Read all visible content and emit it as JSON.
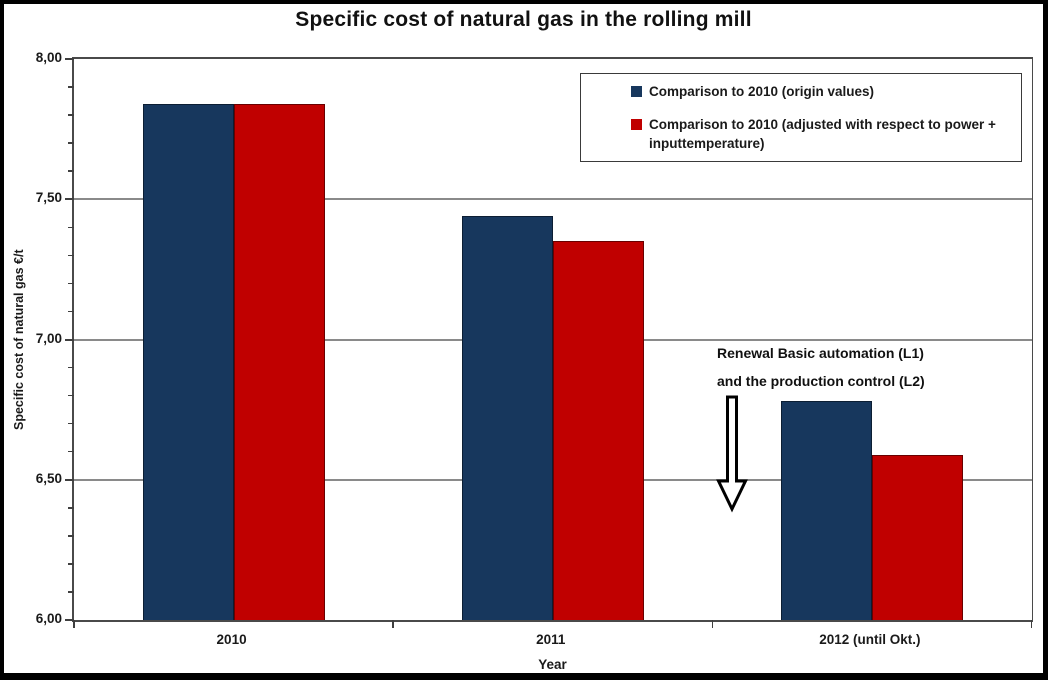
{
  "window": {
    "background": "#ffffff",
    "frame_border_color": "#000000"
  },
  "chart_data": {
    "type": "bar",
    "title": "Specific cost of natural gas in the rolling mill",
    "xlabel": "Year",
    "ylabel": "Specific cost of natural gas  €/t",
    "categories": [
      "2010",
      "2011",
      "2012 (until Okt.)"
    ],
    "series": [
      {
        "name": "Comparison to 2010 (origin values)",
        "color": "#17375D",
        "values": [
          7.84,
          7.44,
          6.78
        ]
      },
      {
        "name": "Comparison to 2010 (adjusted with respect to power + inputtemperature)",
        "color": "#C00000",
        "values": [
          7.84,
          7.35,
          6.59
        ]
      }
    ],
    "ylim": [
      6.0,
      8.0
    ],
    "yticks": [
      8.0,
      7.5,
      7.0,
      6.5,
      6.0
    ],
    "ytick_labels": [
      "8,00",
      "7,50",
      "7,00",
      "6,50",
      "6,00"
    ],
    "minor_tick_step": 0.1,
    "grid": "horizontal major gridlines, gray",
    "gridline_color": "#8a8a8a",
    "legend_position": "top-right inside plot, boxed",
    "annotation": {
      "line1": "Renewal Basic automation (L1)",
      "line2": "and the production control (L2)",
      "arrow": "hollow block arrow pointing down",
      "arrow_fill": "#ffffff",
      "arrow_outline": "#000000"
    }
  }
}
